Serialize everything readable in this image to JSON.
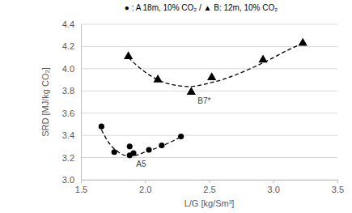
{
  "chart_data": {
    "type": "scatter",
    "title": "● : A 18m, 10% CO₂  /  ▲ B: 12m, 10% CO₂",
    "x_label": "L/G [kg/Sm³]",
    "y_label": "SRD [MJ/kg CO₂]",
    "xlim": [
      1.5,
      3.5
    ],
    "ylim": [
      3.0,
      4.4
    ],
    "xticks": [
      1.5,
      {
        "value": 2.0,
        "label": "2.0"
      },
      2.5,
      {
        "value": 3.0,
        "label": "3.0"
      },
      3.5
    ],
    "yticks": [
      {
        "value": 3.0,
        "label": "3.0"
      },
      3.2,
      3.4,
      3.6,
      3.8,
      {
        "value": 4.0,
        "label": "4.0"
      },
      4.2,
      4.4
    ],
    "grid": "y",
    "series": [
      {
        "type": "scatter",
        "marker": "circle",
        "color": "#000000",
        "x": [
          1.66,
          1.76,
          1.88,
          1.88,
          1.91,
          2.03,
          2.13,
          2.28
        ],
        "values": [
          3.48,
          3.25,
          3.3,
          3.22,
          3.24,
          3.27,
          3.31,
          3.39
        ]
      },
      {
        "type": "scatter",
        "marker": "triangle",
        "color": "#000000",
        "x": [
          1.87,
          2.1,
          2.36,
          2.52,
          2.92,
          3.23
        ],
        "values": [
          4.11,
          3.9,
          3.79,
          3.92,
          4.08,
          4.23
        ]
      },
      {
        "type": "line",
        "line_style": "dashed",
        "color": "#000000",
        "x": [
          1.66,
          1.72,
          1.78,
          1.85,
          1.92,
          2.0,
          2.1,
          2.2,
          2.3
        ],
        "values": [
          3.45,
          3.33,
          3.26,
          3.22,
          3.22,
          3.25,
          3.29,
          3.34,
          3.4
        ]
      },
      {
        "type": "line",
        "line_style": "dashed",
        "color": "#000000",
        "x": [
          1.87,
          2.0,
          2.1,
          2.2,
          2.35,
          2.5,
          2.65,
          2.8,
          2.95,
          3.1,
          3.23
        ],
        "values": [
          4.1,
          3.97,
          3.9,
          3.86,
          3.84,
          3.87,
          3.92,
          3.99,
          4.07,
          4.16,
          4.23
        ]
      }
    ],
    "annotations": [
      {
        "text": "A5",
        "x": 1.88,
        "y": 3.22
      },
      {
        "text": "B7*",
        "x": 2.36,
        "y": 3.79
      }
    ]
  }
}
